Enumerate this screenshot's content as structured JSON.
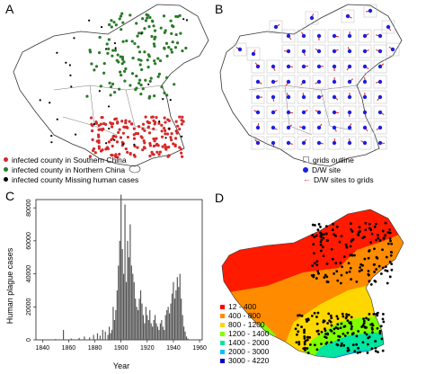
{
  "panels": {
    "a": {
      "label": "A",
      "legend": [
        {
          "text": "infected county in Southern China",
          "color": "#d62728"
        },
        {
          "text": "infected county in Northern China",
          "color": "#2a7a2a"
        },
        {
          "text": "infected county Missing human cases",
          "color": "#000000"
        }
      ]
    },
    "b": {
      "label": "B",
      "legend": [
        {
          "text": "grids outline",
          "symbol": "square"
        },
        {
          "text": "D/W site",
          "symbol": "dot",
          "color": "#1f1fe0"
        },
        {
          "text": "D/W sites to grids",
          "symbol": "arrow",
          "color": "#e02020"
        }
      ]
    },
    "c": {
      "label": "C"
    },
    "d": {
      "label": "D",
      "legend": [
        {
          "text": "12 - 400",
          "color": "#ff0000"
        },
        {
          "text": "400 - 800",
          "color": "#ff8c00"
        },
        {
          "text": "800 - 1200",
          "color": "#ffd700"
        },
        {
          "text": "1200 - 1400",
          "color": "#7fff00"
        },
        {
          "text": "1400 - 2000",
          "color": "#00e5a0"
        },
        {
          "text": "2000 - 3000",
          "color": "#00bfff"
        },
        {
          "text": "3000 - 4220",
          "color": "#0000cd"
        }
      ]
    }
  },
  "chart_data": {
    "type": "bar",
    "xlabel": "Year",
    "ylabel": "Human plague cases",
    "xlim": [
      1835,
      1962
    ],
    "ylim": [
      0,
      85000
    ],
    "xticks": [
      1840,
      1860,
      1880,
      1900,
      1920,
      1940,
      1960
    ],
    "yticks": [
      0,
      20000,
      40000,
      60000,
      80000
    ],
    "x": [
      1850,
      1856,
      1862,
      1868,
      1872,
      1876,
      1879,
      1882,
      1884,
      1886,
      1888,
      1890,
      1891,
      1892,
      1893,
      1894,
      1895,
      1896,
      1897,
      1898,
      1899,
      1900,
      1901,
      1902,
      1903,
      1904,
      1905,
      1906,
      1907,
      1908,
      1909,
      1910,
      1911,
      1912,
      1913,
      1914,
      1915,
      1916,
      1917,
      1918,
      1919,
      1920,
      1921,
      1922,
      1923,
      1924,
      1925,
      1926,
      1927,
      1928,
      1929,
      1930,
      1931,
      1932,
      1933,
      1934,
      1935,
      1936,
      1937,
      1938,
      1939,
      1940,
      1941,
      1942,
      1943,
      1944,
      1945,
      1946,
      1947,
      1948,
      1949,
      1950,
      1951,
      1952
    ],
    "values": [
      500,
      6000,
      800,
      1200,
      2000,
      1500,
      3000,
      4000,
      2500,
      6000,
      5000,
      3000,
      8000,
      4000,
      6000,
      20000,
      12000,
      18000,
      30000,
      45000,
      60000,
      88000,
      55000,
      40000,
      82000,
      35000,
      60000,
      50000,
      70000,
      45000,
      40000,
      35000,
      25000,
      20000,
      18000,
      25000,
      30000,
      22000,
      15000,
      10000,
      20000,
      15000,
      12000,
      18000,
      10000,
      8000,
      12000,
      15000,
      10000,
      8000,
      6000,
      10000,
      12000,
      8000,
      6000,
      15000,
      18000,
      20000,
      16000,
      22000,
      28000,
      35000,
      25000,
      30000,
      38000,
      32000,
      40000,
      25000,
      15000,
      8000,
      5000,
      2000,
      800,
      300
    ]
  }
}
